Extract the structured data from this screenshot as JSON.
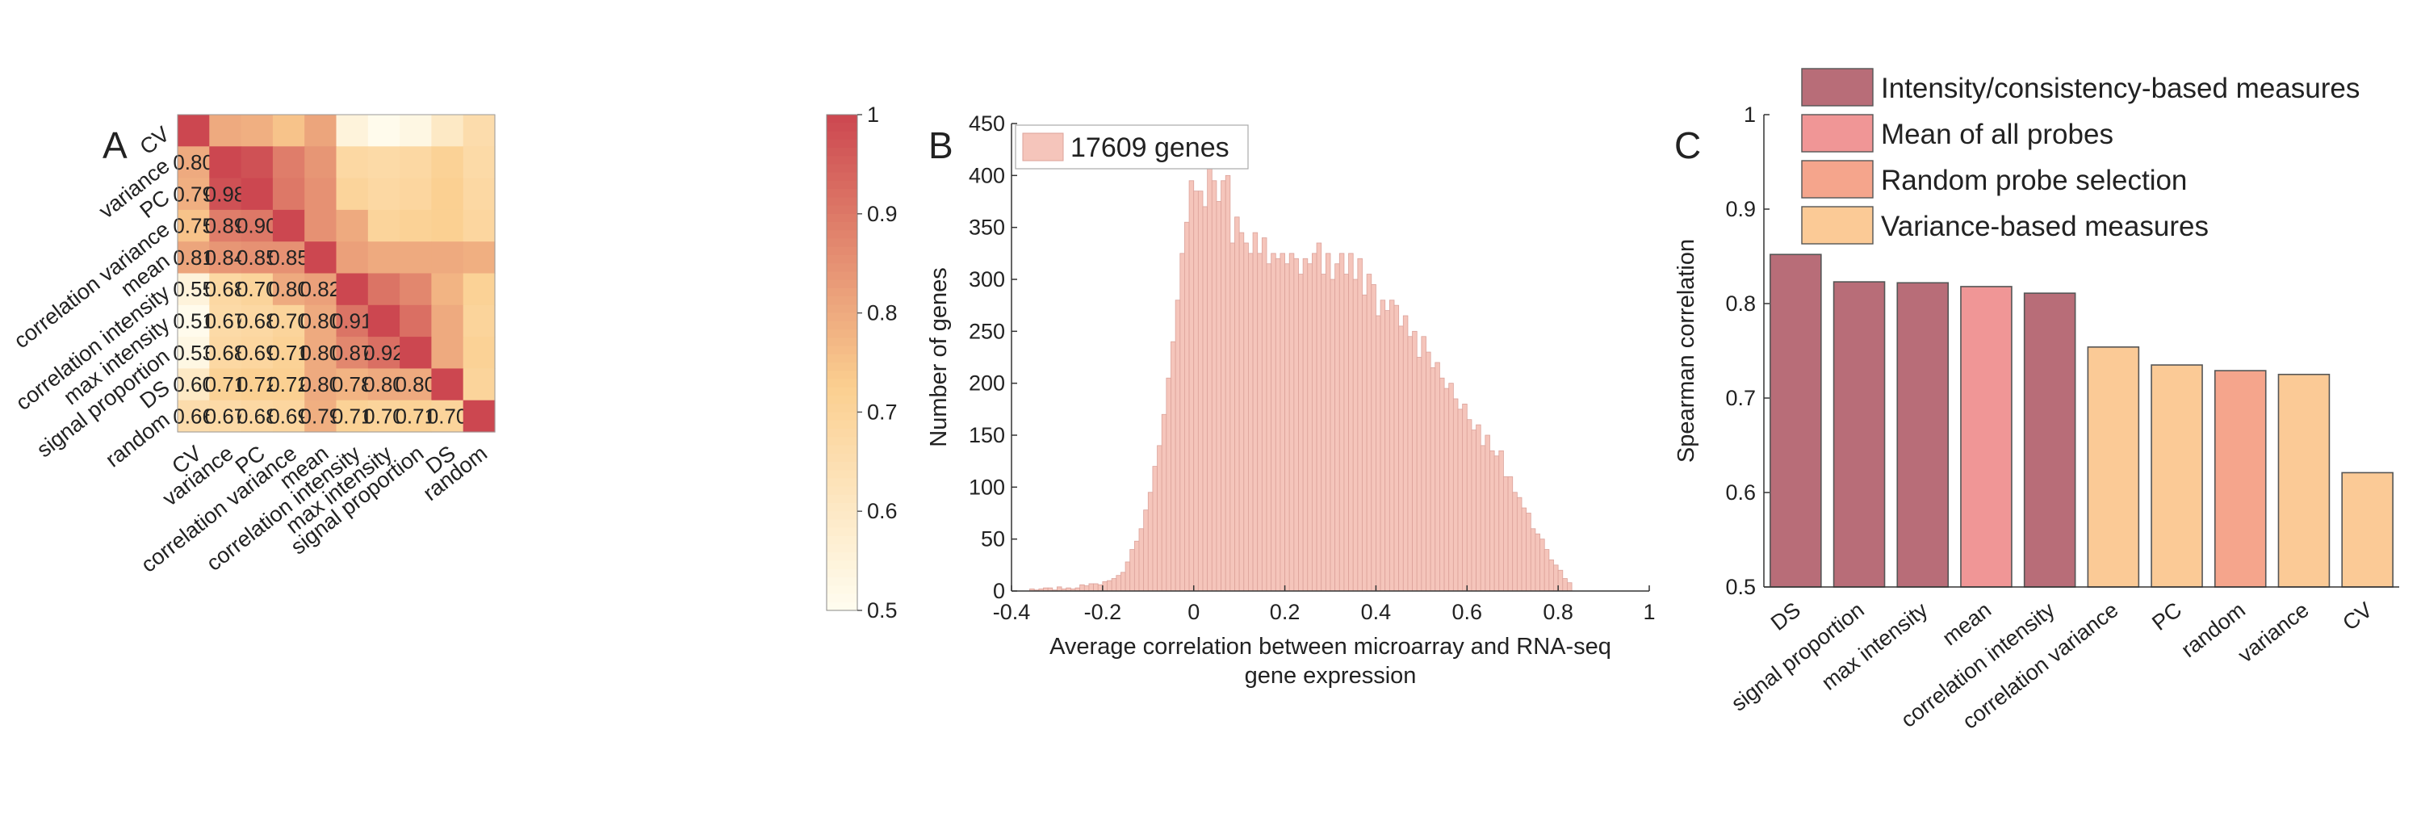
{
  "chart_data": [
    {
      "panel": "A",
      "type": "heatmap",
      "row_labels": [
        "CV",
        "variance",
        "PC",
        "correlation variance",
        "mean",
        "correlation intensity",
        "max intensity",
        "signal proportion",
        "DS",
        "random"
      ],
      "col_labels": [
        "CV",
        "variance",
        "PC",
        "correlation variance",
        "mean",
        "correlation intensity",
        "max intensity",
        "signal proportion",
        "DS",
        "random"
      ],
      "values": [
        [
          1.0,
          0.8,
          0.79,
          0.75,
          0.81,
          0.55,
          0.51,
          0.53,
          0.6,
          0.66
        ],
        [
          0.8,
          1.0,
          0.98,
          0.89,
          0.84,
          0.68,
          0.67,
          0.68,
          0.71,
          0.67
        ],
        [
          0.79,
          0.98,
          1.0,
          0.9,
          0.85,
          0.7,
          0.68,
          0.69,
          0.72,
          0.68
        ],
        [
          0.75,
          0.89,
          0.9,
          1.0,
          0.85,
          0.8,
          0.7,
          0.71,
          0.72,
          0.69
        ],
        [
          0.81,
          0.84,
          0.85,
          0.85,
          1.0,
          0.82,
          0.8,
          0.8,
          0.8,
          0.79
        ],
        [
          0.55,
          0.68,
          0.7,
          0.8,
          0.82,
          1.0,
          0.91,
          0.87,
          0.78,
          0.71
        ],
        [
          0.51,
          0.67,
          0.68,
          0.7,
          0.8,
          0.91,
          1.0,
          0.92,
          0.8,
          0.7
        ],
        [
          0.53,
          0.68,
          0.69,
          0.71,
          0.8,
          0.87,
          0.92,
          1.0,
          0.8,
          0.71
        ],
        [
          0.6,
          0.71,
          0.72,
          0.72,
          0.8,
          0.78,
          0.8,
          0.8,
          1.0,
          0.7
        ],
        [
          0.66,
          0.67,
          0.68,
          0.69,
          0.79,
          0.71,
          0.7,
          0.71,
          0.7,
          1.0
        ]
      ],
      "labels_shown": "lower-triangle",
      "colorbar": {
        "min": 0.5,
        "max": 1,
        "ticks": [
          "0.5",
          "0.6",
          "0.7",
          "0.8",
          "0.9",
          "1"
        ]
      },
      "colors": {
        "low": "#fffdf0",
        "mid": "#fbcf90",
        "high": "#cc4750"
      }
    },
    {
      "panel": "B",
      "type": "bar",
      "subtype": "histogram",
      "xlabel": "Average correlation between microarray and RNA-seq gene expression",
      "ylabel": "Number of genes",
      "xlim": [
        -0.4,
        1
      ],
      "ylim": [
        0,
        450
      ],
      "xticks": [
        "-0.4",
        "-0.2",
        "0",
        "0.2",
        "0.4",
        "0.6",
        "0.8",
        "1"
      ],
      "yticks": [
        "0",
        "50",
        "100",
        "150",
        "200",
        "250",
        "300",
        "350",
        "400",
        "450"
      ],
      "bin_start": -0.36,
      "bin_width": 0.01,
      "counts": [
        2,
        1,
        2,
        3,
        3,
        1,
        4,
        2,
        3,
        2,
        3,
        6,
        5,
        7,
        7,
        6,
        9,
        10,
        12,
        15,
        18,
        28,
        40,
        48,
        60,
        78,
        95,
        120,
        140,
        170,
        205,
        240,
        280,
        325,
        355,
        395,
        385,
        385,
        370,
        410,
        395,
        375,
        395,
        400,
        335,
        360,
        345,
        335,
        325,
        345,
        325,
        340,
        315,
        325,
        320,
        325,
        315,
        325,
        320,
        305,
        320,
        315,
        325,
        335,
        305,
        325,
        300,
        315,
        325,
        305,
        325,
        300,
        320,
        285,
        305,
        295,
        265,
        280,
        270,
        280,
        275,
        255,
        265,
        245,
        250,
        225,
        245,
        230,
        215,
        220,
        205,
        195,
        200,
        185,
        175,
        180,
        165,
        155,
        160,
        140,
        150,
        135,
        130,
        135,
        110,
        110,
        95,
        90,
        80,
        75,
        60,
        55,
        50,
        40,
        30,
        25,
        20,
        12,
        8
      ],
      "bar_color": "#f5c5bb",
      "legend": {
        "label": "17609 genes",
        "position": "top-left"
      }
    },
    {
      "panel": "C",
      "type": "bar",
      "ylabel": "Spearman correlation",
      "ylim": [
        0.5,
        1
      ],
      "yticks": [
        "0.5",
        "0.6",
        "0.7",
        "0.8",
        "0.9",
        "1"
      ],
      "categories": [
        "DS",
        "signal proportion",
        "max intensity",
        "mean",
        "correlation intensity",
        "correlation variance",
        "PC",
        "random",
        "variance",
        "CV"
      ],
      "values": [
        0.852,
        0.823,
        0.822,
        0.818,
        0.811,
        0.754,
        0.735,
        0.729,
        0.725,
        0.621
      ],
      "groups": [
        "Intensity/consistency-based measures",
        "Intensity/consistency-based measures",
        "Intensity/consistency-based measures",
        "Mean of all probes",
        "Intensity/consistency-based measures",
        "Variance-based measures",
        "Variance-based measures",
        "Random probe selection",
        "Variance-based measures",
        "Variance-based measures"
      ],
      "legend": [
        {
          "label": "Intensity/consistency-based measures",
          "color": "#b86d78"
        },
        {
          "label": "Mean of all probes",
          "color": "#f09696"
        },
        {
          "label": "Random probe selection",
          "color": "#f5a58c"
        },
        {
          "label": "Variance-based measures",
          "color": "#fbca96"
        }
      ],
      "legend_position": "top"
    }
  ],
  "panel_letters": {
    "a": "A",
    "b": "B",
    "c": "C"
  }
}
